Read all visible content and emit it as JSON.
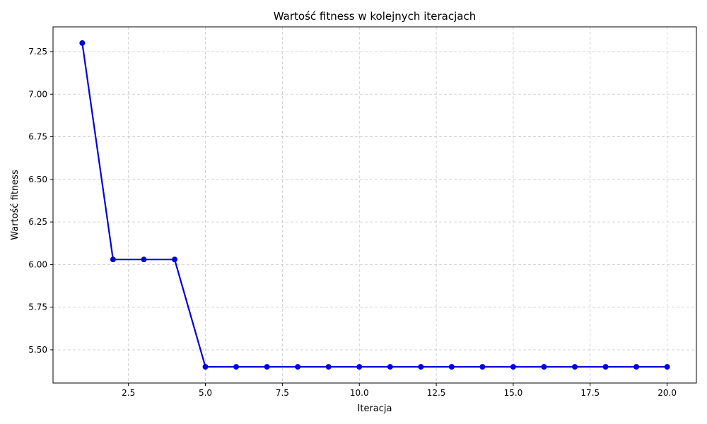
{
  "chart_data": {
    "type": "line",
    "title": "Wartość fitness w kolejnych iteracjach",
    "xlabel": "Iteracja",
    "ylabel": "Wartość fitness",
    "x": [
      1,
      2,
      3,
      4,
      5,
      6,
      7,
      8,
      9,
      10,
      11,
      12,
      13,
      14,
      15,
      16,
      17,
      18,
      19,
      20
    ],
    "series": [
      {
        "values": [
          7.3,
          6.03,
          6.03,
          6.03,
          5.4,
          5.4,
          5.4,
          5.4,
          5.4,
          5.4,
          5.4,
          5.4,
          5.4,
          5.4,
          5.4,
          5.4,
          5.4,
          5.4,
          5.4,
          5.4
        ],
        "color": "#0000dd",
        "marker": "circle"
      }
    ],
    "xlim": [
      0.05,
      20.95
    ],
    "ylim": [
      5.305,
      7.395
    ],
    "xticks": [
      2.5,
      5.0,
      7.5,
      10.0,
      12.5,
      15.0,
      17.5,
      20.0
    ],
    "xtick_labels": [
      "2.5",
      "5.0",
      "7.5",
      "10.0",
      "12.5",
      "15.0",
      "17.5",
      "20.0"
    ],
    "yticks": [
      5.5,
      5.75,
      6.0,
      6.25,
      6.5,
      6.75,
      7.0,
      7.25
    ],
    "ytick_labels": [
      "5.50",
      "5.75",
      "6.00",
      "6.25",
      "6.50",
      "6.75",
      "7.00",
      "7.25"
    ],
    "grid": true
  }
}
